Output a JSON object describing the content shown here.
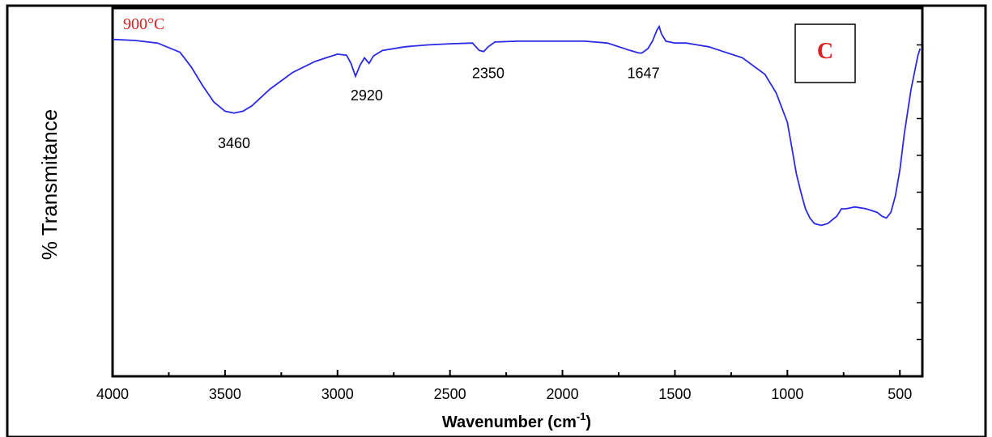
{
  "chart_data": {
    "type": "line",
    "xlabel_main": "Wavenumber (cm",
    "xlabel_sup": "-1",
    "xlabel_close": ")",
    "ylabel": "% Transmitance",
    "temperature_label": "900°C",
    "panel_label": "C",
    "xlim": [
      4000,
      400
    ],
    "ylim": [
      0,
      100
    ],
    "x_ticks": [
      "4000",
      "3500",
      "3000",
      "2500",
      "2000",
      "1500",
      "1000",
      "500"
    ],
    "x_tick_values": [
      4000,
      3500,
      3000,
      2500,
      2000,
      1500,
      1000,
      500
    ],
    "y_tick_values": [
      10,
      20,
      30,
      40,
      50,
      60,
      70,
      80,
      90
    ],
    "line_color": "#2a2ae6",
    "annotations": [
      {
        "text": "3460",
        "x": 3460,
        "y": 62
      },
      {
        "text": "2920",
        "x": 2870,
        "y": 75
      },
      {
        "text": "2350",
        "x": 2330,
        "y": 81
      },
      {
        "text": "1647",
        "x": 1640,
        "y": 81
      }
    ],
    "series": [
      {
        "x": [
          4000,
          3900,
          3800,
          3700,
          3650,
          3600,
          3550,
          3500,
          3460,
          3420,
          3380,
          3300,
          3200,
          3100,
          3050,
          3000,
          2960,
          2940,
          2920,
          2900,
          2880,
          2860,
          2840,
          2800,
          2700,
          2600,
          2500,
          2400,
          2370,
          2350,
          2330,
          2300,
          2200,
          2100,
          2000,
          1900,
          1800,
          1700,
          1660,
          1647,
          1620,
          1600,
          1580,
          1570,
          1560,
          1550,
          1540,
          1500,
          1450,
          1400,
          1350,
          1300,
          1200,
          1100,
          1050,
          1000,
          980,
          960,
          940,
          920,
          900,
          880,
          850,
          820,
          800,
          780,
          760,
          740,
          700,
          650,
          600,
          580,
          560,
          540,
          520,
          500,
          480,
          450,
          420,
          410
        ],
        "y": [
          91.5,
          91.2,
          90.5,
          88,
          84,
          79,
          74.5,
          72,
          71.5,
          72,
          73.5,
          78,
          82.5,
          85.5,
          86.5,
          87.5,
          87.2,
          85,
          81.5,
          84.5,
          86.5,
          85,
          87,
          88.5,
          89.5,
          90,
          90.3,
          90.5,
          88.5,
          88.2,
          89.5,
          90.8,
          91,
          91,
          91,
          91,
          90.5,
          88.5,
          87.8,
          87.8,
          89,
          91,
          94,
          95,
          93,
          92,
          91,
          90.5,
          90.5,
          90,
          89.5,
          88.5,
          86.5,
          82,
          77,
          69,
          62,
          55,
          50,
          45.5,
          43,
          41.5,
          41,
          41.5,
          42.5,
          43.5,
          45.5,
          45.5,
          46,
          45.5,
          44.5,
          43.5,
          43,
          44.5,
          49,
          56,
          66,
          78,
          87,
          89
        ]
      }
    ]
  }
}
